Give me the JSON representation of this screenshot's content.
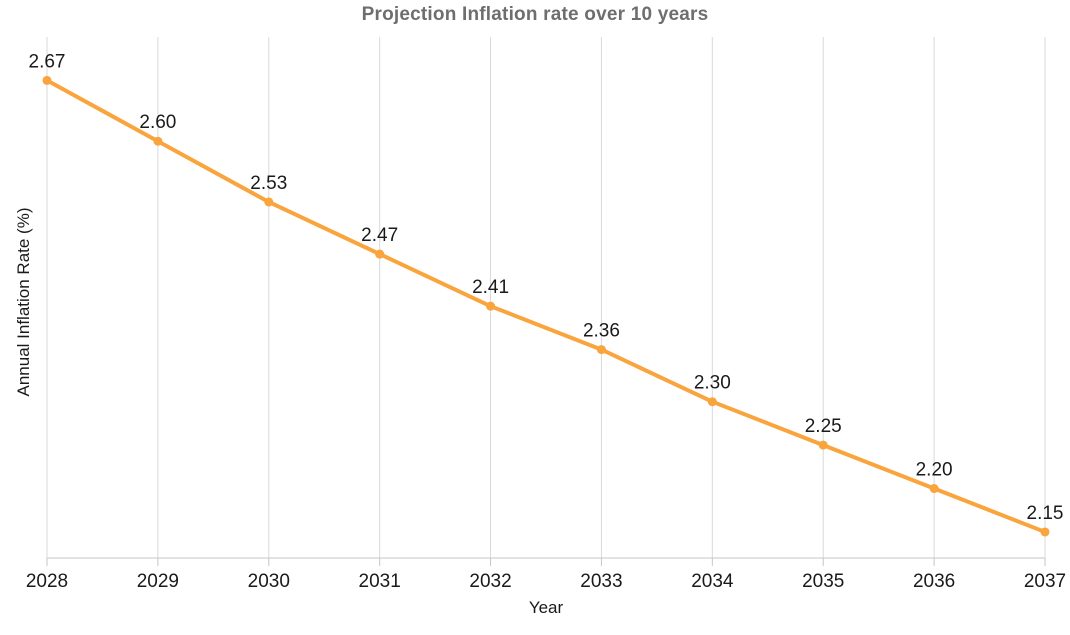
{
  "chart_data": {
    "type": "line",
    "title": "Projection Inflation rate over 10 years",
    "xlabel": "Year",
    "ylabel": "Annual Inflation Rate (%)",
    "categories": [
      2028,
      2029,
      2030,
      2031,
      2032,
      2033,
      2034,
      2035,
      2036,
      2037
    ],
    "values": [
      2.67,
      2.6,
      2.53,
      2.47,
      2.41,
      2.36,
      2.3,
      2.25,
      2.2,
      2.15
    ],
    "point_labels": [
      "2.67",
      "2.60",
      "2.53",
      "2.47",
      "2.41",
      "2.36",
      "2.30",
      "2.25",
      "2.20",
      "2.15"
    ],
    "ylim": [
      2.12,
      2.72
    ],
    "grid": "vertical-only",
    "legend": "none",
    "marker": "circle",
    "colors": {
      "line": "#F9A43C",
      "marker": "#F9A43C",
      "grid": "#D9D9D9",
      "axis": "#C6C6C6",
      "tick_text": "#1A1A1A",
      "data_label_text": "#1A1A1A",
      "title_text": "#6E6E6E"
    }
  }
}
